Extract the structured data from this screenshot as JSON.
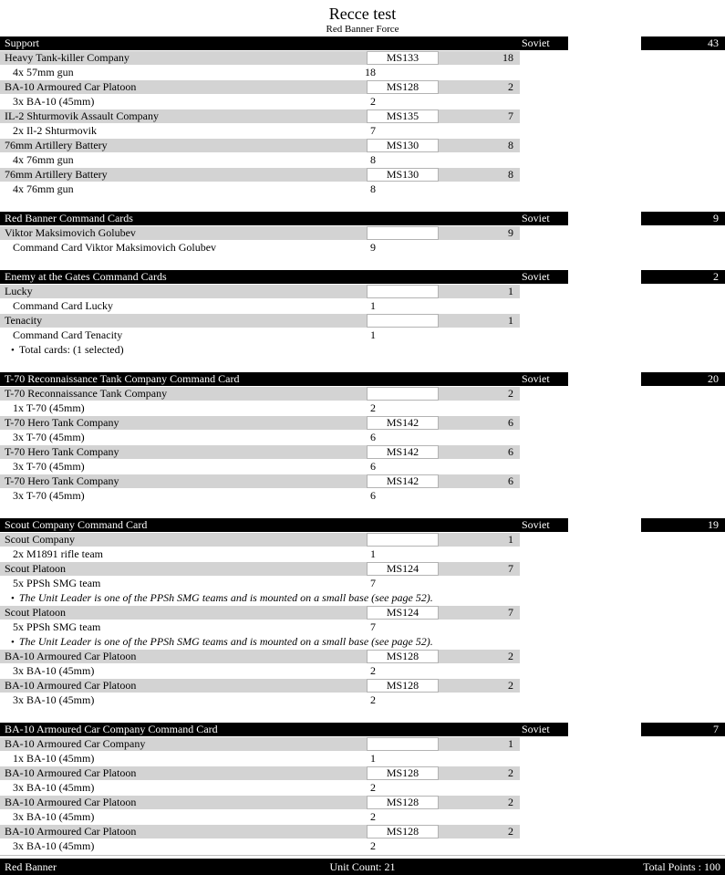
{
  "page": {
    "title": "Recce test",
    "subtitle": "Red Banner Force",
    "bullet_char": "•",
    "accent_colors": {
      "header_bar": "#000000",
      "row_gray": "#d3d3d3",
      "box_border": "#b3b3b3"
    }
  },
  "sections": [
    {
      "title": "Support",
      "nation": "Soviet",
      "points": "43",
      "rows": [
        {
          "type": "unit",
          "name": "Heavy Tank-killer Company",
          "code": "MS133",
          "points": "18"
        },
        {
          "type": "sub",
          "text": "4x 57mm gun",
          "value": "18"
        },
        {
          "type": "unit",
          "name": "BA-10 Armoured Car Platoon",
          "code": "MS128",
          "points": "2"
        },
        {
          "type": "sub",
          "text": "3x BA-10 (45mm)",
          "value": "2"
        },
        {
          "type": "unit",
          "name": "IL-2 Shturmovik Assault Company",
          "code": "MS135",
          "points": "7"
        },
        {
          "type": "sub",
          "text": "2x Il-2 Shturmovik",
          "value": "7"
        },
        {
          "type": "unit",
          "name": "76mm Artillery Battery",
          "code": "MS130",
          "points": "8"
        },
        {
          "type": "sub",
          "text": "4x 76mm gun",
          "value": "8"
        },
        {
          "type": "unit",
          "name": "76mm Artillery Battery",
          "code": "MS130",
          "points": "8"
        },
        {
          "type": "sub",
          "text": "4x 76mm gun",
          "value": "8"
        }
      ]
    },
    {
      "title": "Red Banner Command Cards",
      "nation": "Soviet",
      "points": "9",
      "rows": [
        {
          "type": "unit",
          "name": "Viktor Maksimovich Golubev",
          "code": "",
          "points": "9"
        },
        {
          "type": "sub",
          "text": "Command Card Viktor Maksimovich Golubev",
          "value": "9"
        }
      ]
    },
    {
      "title": "Enemy at the Gates Command Cards",
      "nation": "Soviet",
      "points": "2",
      "rows": [
        {
          "type": "unit",
          "name": "Lucky",
          "code": "",
          "points": "1"
        },
        {
          "type": "sub",
          "text": "Command Card Lucky",
          "value": "1"
        },
        {
          "type": "unit",
          "name": "Tenacity",
          "code": "",
          "points": "1"
        },
        {
          "type": "sub",
          "text": "Command Card Tenacity",
          "value": "1"
        },
        {
          "type": "bullet",
          "text": "Total cards: (1 selected)",
          "italic": false
        }
      ]
    },
    {
      "title": "T-70 Reconnaissance Tank Company Command Card",
      "nation": "Soviet",
      "points": "20",
      "rows": [
        {
          "type": "unit",
          "name": "T-70 Reconnaissance Tank Company",
          "code": "",
          "points": "2"
        },
        {
          "type": "sub",
          "text": "1x T-70 (45mm)",
          "value": "2"
        },
        {
          "type": "unit",
          "name": "T-70 Hero Tank Company",
          "code": "MS142",
          "points": "6"
        },
        {
          "type": "sub",
          "text": "3x T-70 (45mm)",
          "value": "6"
        },
        {
          "type": "unit",
          "name": "T-70 Hero Tank Company",
          "code": "MS142",
          "points": "6"
        },
        {
          "type": "sub",
          "text": "3x T-70 (45mm)",
          "value": "6"
        },
        {
          "type": "unit",
          "name": "T-70 Hero Tank Company",
          "code": "MS142",
          "points": "6"
        },
        {
          "type": "sub",
          "text": "3x T-70 (45mm)",
          "value": "6"
        }
      ]
    },
    {
      "title": "Scout Company Command Card",
      "nation": "Soviet",
      "points": "19",
      "rows": [
        {
          "type": "unit",
          "name": "Scout Company",
          "code": "",
          "points": "1"
        },
        {
          "type": "sub",
          "text": "2x M1891 rifle team",
          "value": "1"
        },
        {
          "type": "unit",
          "name": "Scout Platoon",
          "code": "MS124",
          "points": "7"
        },
        {
          "type": "sub",
          "text": "5x PPSh SMG team",
          "value": "7"
        },
        {
          "type": "bullet",
          "text": "The Unit Leader is one of the PPSh SMG teams and is mounted on a small base (see page 52).",
          "italic": true
        },
        {
          "type": "unit",
          "name": "Scout Platoon",
          "code": "MS124",
          "points": "7"
        },
        {
          "type": "sub",
          "text": "5x PPSh SMG team",
          "value": "7"
        },
        {
          "type": "bullet",
          "text": "The Unit Leader is one of the PPSh SMG teams and is mounted on a small base (see page 52).",
          "italic": true
        },
        {
          "type": "unit",
          "name": "BA-10 Armoured Car Platoon",
          "code": "MS128",
          "points": "2"
        },
        {
          "type": "sub",
          "text": "3x BA-10 (45mm)",
          "value": "2"
        },
        {
          "type": "unit",
          "name": "BA-10 Armoured Car Platoon",
          "code": "MS128",
          "points": "2"
        },
        {
          "type": "sub",
          "text": "3x BA-10 (45mm)",
          "value": "2"
        }
      ]
    },
    {
      "title": "BA-10 Armoured Car Company Command Card",
      "nation": "Soviet",
      "points": "7",
      "rows": [
        {
          "type": "unit",
          "name": "BA-10 Armoured Car Company",
          "code": "",
          "points": "1"
        },
        {
          "type": "sub",
          "text": "1x BA-10 (45mm)",
          "value": "1"
        },
        {
          "type": "unit",
          "name": "BA-10 Armoured Car Platoon",
          "code": "MS128",
          "points": "2"
        },
        {
          "type": "sub",
          "text": "3x BA-10 (45mm)",
          "value": "2"
        },
        {
          "type": "unit",
          "name": "BA-10 Armoured Car Platoon",
          "code": "MS128",
          "points": "2"
        },
        {
          "type": "sub",
          "text": "3x BA-10 (45mm)",
          "value": "2"
        },
        {
          "type": "unit",
          "name": "BA-10 Armoured Car Platoon",
          "code": "MS128",
          "points": "2"
        },
        {
          "type": "sub",
          "text": "3x BA-10 (45mm)",
          "value": "2"
        }
      ]
    }
  ],
  "footer": {
    "force": "Red Banner",
    "unit_count": "Unit Count: 21",
    "total_points": "Total Points : 100"
  }
}
